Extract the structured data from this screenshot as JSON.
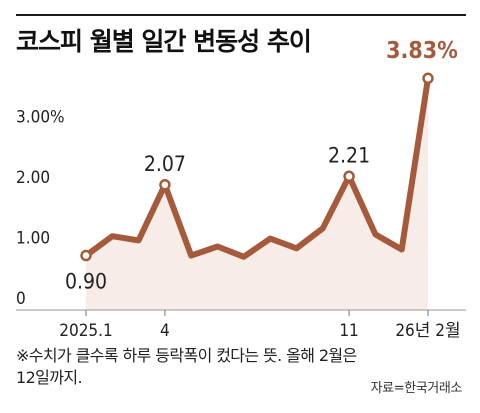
{
  "title": "코스피 월별 일간 변동성 추이",
  "chart_data": {
    "type": "area",
    "title": "코스피 월별 일간 변동성 추이",
    "y_ticks": [
      {
        "value": 0,
        "label": "0"
      },
      {
        "value": 1.0,
        "label": "1.00"
      },
      {
        "value": 2.0,
        "label": "2.00"
      },
      {
        "value": 3.0,
        "label": "3.00%"
      }
    ],
    "ylim": [
      0,
      4.1
    ],
    "x_ticks": [
      {
        "index": 0,
        "label": "2025.1"
      },
      {
        "index": 3,
        "label": "4"
      },
      {
        "index": 10,
        "label": "11"
      },
      {
        "index": 13,
        "label": "26년 2월"
      }
    ],
    "x": [
      "2025.1",
      "2025.2",
      "2025.3",
      "2025.4",
      "2025.5",
      "2025.6",
      "2025.7",
      "2025.8",
      "2025.9",
      "2025.10",
      "2025.11",
      "2025.12",
      "2026.1",
      "2026.2"
    ],
    "values": [
      0.9,
      1.22,
      1.15,
      2.07,
      0.9,
      1.05,
      0.88,
      1.18,
      1.02,
      1.35,
      2.21,
      1.25,
      1.0,
      3.83
    ],
    "data_labels": [
      {
        "index": 0,
        "label": "0.90"
      },
      {
        "index": 3,
        "label": "2.07"
      },
      {
        "index": 10,
        "label": "2.21"
      },
      {
        "index": 13,
        "label": "3.83%"
      }
    ],
    "line_color": "#a65a3c",
    "fill_color": "#f8ece8",
    "label_accent_color": "#a65a3c",
    "grid": false
  },
  "footnote": "※수치가 클수록 하루 등락폭이 컸다는 뜻. 올해 2월은 12일까지.",
  "footnote_line1": "※수치가 클수록 하루 등락폭이 컸다는 뜻. 올해 2월은",
  "footnote_line2": "12일까지.",
  "source": "자료=한국거래소"
}
